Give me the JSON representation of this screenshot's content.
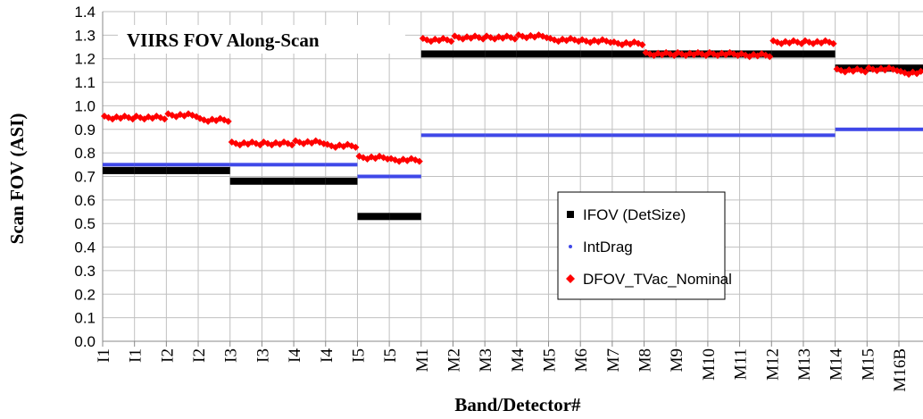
{
  "chart_data": {
    "type": "scatter",
    "title": "VIIRS FOV Along-Scan",
    "x_label": "Band/Detector#",
    "y_label": "Scan FOV (ASI)",
    "categories": [
      "I1",
      "I1",
      "I2",
      "I2",
      "I3",
      "I3",
      "I4",
      "I4",
      "I5",
      "I5",
      "M1",
      "M2",
      "M3",
      "M4",
      "M5",
      "M6",
      "M7",
      "M8",
      "M9",
      "M10",
      "M11",
      "M12",
      "M13",
      "M14",
      "M15",
      "M16B"
    ],
    "series": [
      {
        "name": "IFOV (DetSize)",
        "color": "#000000",
        "marker": "square",
        "values": [
          0.725,
          0.725,
          0.725,
          0.725,
          0.68,
          0.68,
          0.68,
          0.68,
          0.53,
          0.53,
          1.22,
          1.22,
          1.22,
          1.22,
          1.22,
          1.22,
          1.22,
          1.22,
          1.22,
          1.22,
          1.22,
          1.22,
          1.22,
          1.16,
          1.16,
          1.16
        ]
      },
      {
        "name": "IntDrag",
        "color": "#3f48e8",
        "marker": "dot",
        "values": [
          0.75,
          0.75,
          0.75,
          0.75,
          0.75,
          0.75,
          0.75,
          0.75,
          0.7,
          0.7,
          0.875,
          0.875,
          0.875,
          0.875,
          0.875,
          0.875,
          0.875,
          0.875,
          0.875,
          0.875,
          0.875,
          0.875,
          0.875,
          0.9,
          0.9,
          0.9
        ]
      },
      {
        "name": "DFOV_TVac_Nominal",
        "color": "#ff0000",
        "marker": "diamond",
        "values": [
          0.95,
          0.95,
          0.96,
          0.94,
          0.84,
          0.84,
          0.845,
          0.83,
          0.78,
          0.77,
          1.28,
          1.29,
          1.29,
          1.295,
          1.28,
          1.275,
          1.265,
          1.22,
          1.22,
          1.22,
          1.215,
          1.27,
          1.27,
          1.15,
          1.155,
          1.14
        ]
      }
    ],
    "ylim": [
      0,
      1.4
    ],
    "yticks": [
      {
        "value": 0,
        "label": "0.0"
      },
      0.1,
      0.2,
      0.3,
      0.4,
      0.5,
      0.6,
      0.7,
      0.8,
      0.9,
      {
        "value": 1,
        "label": "1.0"
      },
      1.1,
      1.2,
      1.3,
      1.4
    ],
    "grid": true,
    "legend": "right"
  }
}
